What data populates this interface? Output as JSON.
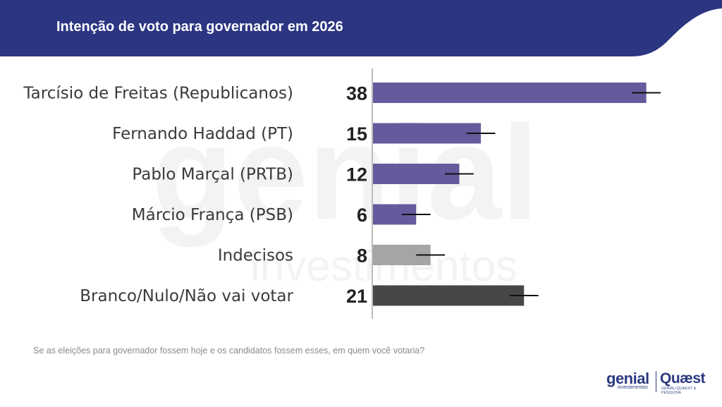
{
  "header": {
    "title": "Intenção de voto para governador em 2026"
  },
  "colors": {
    "header": "#2b3582",
    "candidate": "#645b9c",
    "undecided": "#a5a5a5",
    "blank": "#474747",
    "axis": "#bcbcbc",
    "error": "#111111"
  },
  "chart_data": {
    "type": "bar",
    "orientation": "horizontal",
    "title": "Intenção de voto para governador em 2026",
    "xlabel": "",
    "ylabel": "",
    "xlim": [
      0,
      40
    ],
    "categories": [
      "Tarcísio de Freitas (Republicanos)",
      "Fernando Haddad (PT)",
      "Pablo Marçal (PRTB)",
      "Márcio França (PSB)",
      "Indecisos",
      "Branco/Nulo/Não vai votar"
    ],
    "values": [
      38,
      15,
      12,
      6,
      8,
      21
    ],
    "error_margin": 2,
    "bar_colors": [
      "#645b9c",
      "#645b9c",
      "#645b9c",
      "#645b9c",
      "#a5a5a5",
      "#474747"
    ]
  },
  "footnote": "Se as eleições para governador fossem hoje e os candidatos fossem esses, em quem você votaria?",
  "logos": {
    "genial": "genial",
    "genial_sub": "investimentos",
    "quaest": "Quæst",
    "quaest_sub": "GENIAL/QUAEST & PESQUISA"
  }
}
